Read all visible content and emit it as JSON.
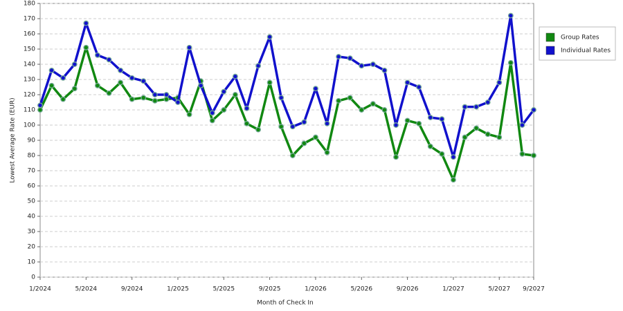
{
  "chart_data": {
    "type": "line",
    "x_label": "Month of Check In",
    "y_label": "Lowest Average Rate (EUR)",
    "categories": [
      "1/2024",
      null,
      null,
      null,
      "5/2024",
      null,
      null,
      null,
      "9/2024",
      null,
      null,
      null,
      "1/2025",
      null,
      null,
      null,
      "5/2025",
      null,
      null,
      null,
      "9/2025",
      null,
      null,
      null,
      "1/2026",
      null,
      null,
      null,
      "5/2026",
      null,
      null,
      null,
      "9/2026",
      null,
      null,
      null,
      "1/2027",
      null,
      null,
      null,
      "5/2027",
      null,
      null,
      "9/2027"
    ],
    "series": [
      {
        "name": "Group Rates",
        "color": "#118811",
        "values": [
          110,
          126,
          117,
          124,
          151,
          126,
          121,
          128,
          117,
          118,
          116,
          117,
          118,
          107,
          129,
          103,
          110,
          120,
          101,
          97,
          128,
          99,
          80,
          88,
          92,
          82,
          116,
          118,
          110,
          114,
          110,
          79,
          103,
          101,
          86,
          81,
          64,
          92,
          98,
          94,
          92,
          141,
          81,
          80
        ]
      },
      {
        "name": "Individual Rates",
        "color": "#1111cc",
        "values": [
          113,
          136,
          131,
          140,
          167,
          146,
          143,
          136,
          131,
          129,
          120,
          120,
          115,
          151,
          126,
          108,
          122,
          132,
          111,
          139,
          158,
          118,
          99,
          102,
          124,
          101,
          145,
          144,
          139,
          140,
          136,
          100,
          128,
          125,
          105,
          104,
          79,
          112,
          112,
          115,
          128,
          172,
          100,
          110
        ]
      }
    ],
    "ylim": [
      0,
      180
    ],
    "yticks": [
      0,
      10,
      20,
      30,
      40,
      50,
      60,
      70,
      80,
      90,
      100,
      110,
      120,
      130,
      140,
      150,
      160,
      170,
      180
    ],
    "grid": true,
    "legend": "right"
  }
}
